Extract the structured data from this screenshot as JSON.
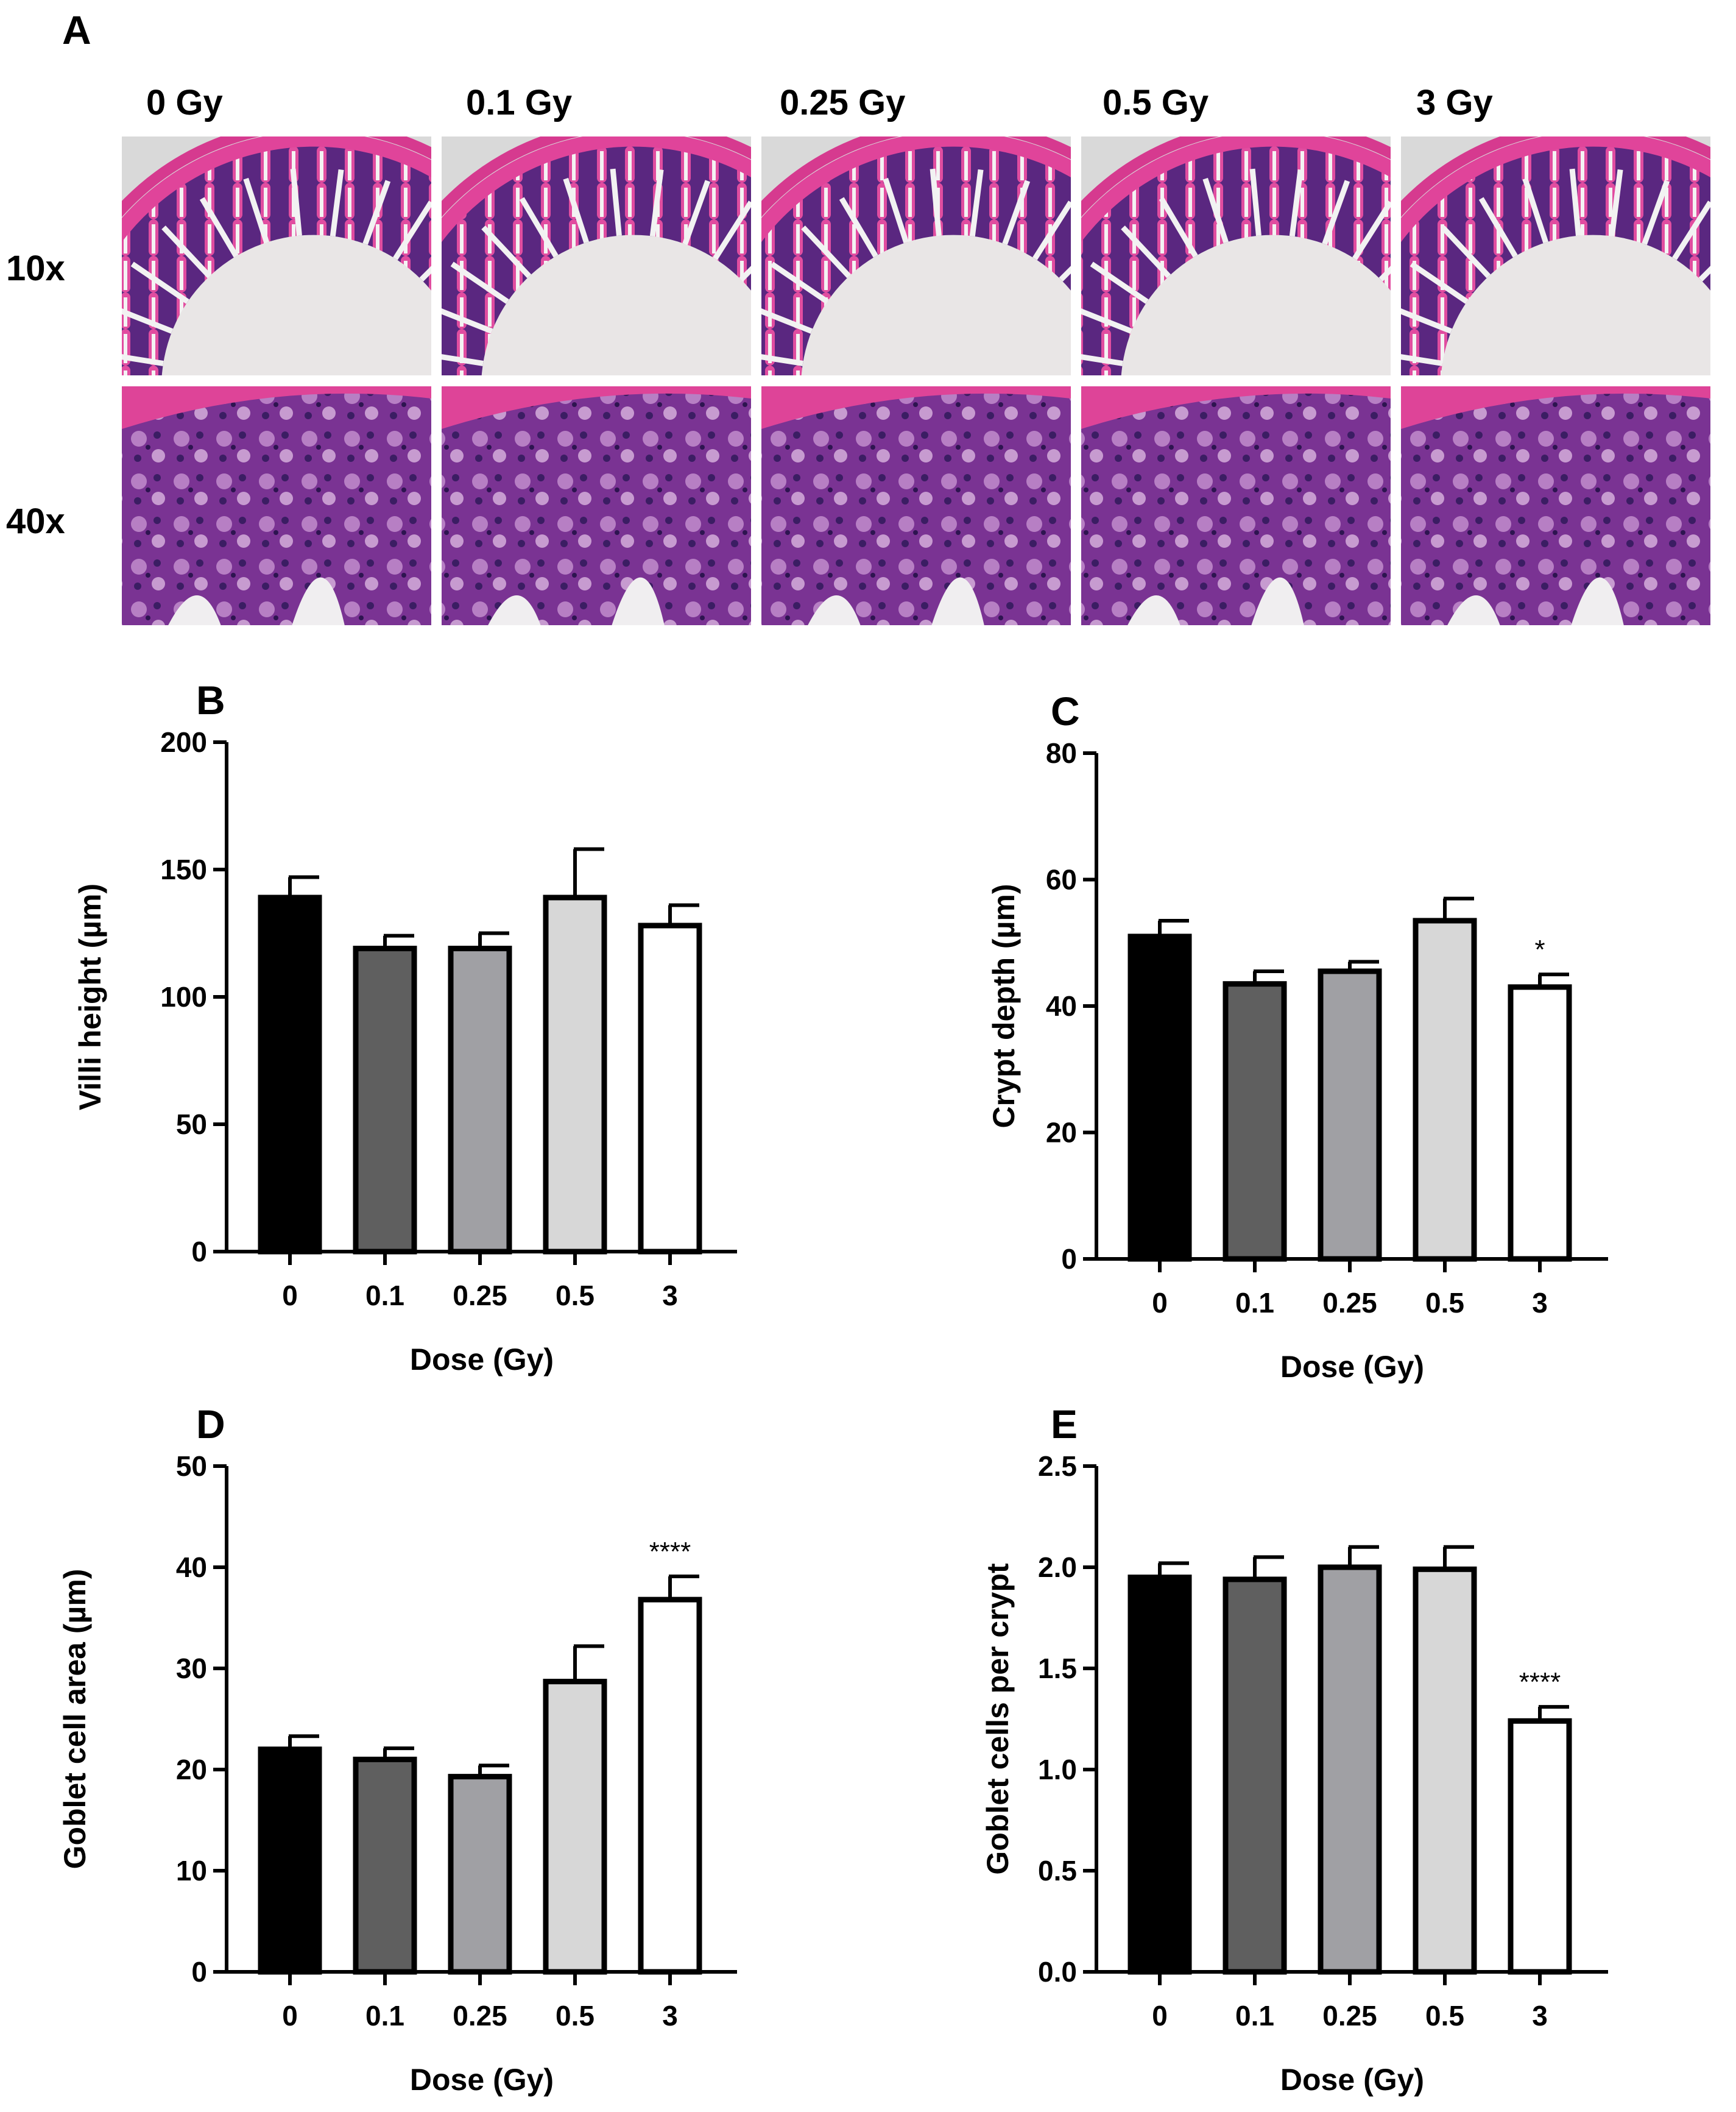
{
  "panel_a": {
    "label": "A",
    "columns": [
      "0 Gy",
      "0.1 Gy",
      "0.25 Gy",
      "0.5 Gy",
      "3 Gy"
    ],
    "rows": [
      "10x",
      "40x"
    ],
    "colors": {
      "pink": "#e0449a",
      "purple": "#5b2a80",
      "background": "#dcdcdc"
    }
  },
  "chart_data": [
    {
      "panel": "B",
      "type": "bar",
      "categories": [
        "0",
        "0.1",
        "0.25",
        "0.5",
        "3"
      ],
      "values": [
        139,
        119,
        119,
        139,
        128
      ],
      "errors": [
        8,
        5,
        6,
        19,
        8
      ],
      "significance": [
        "",
        "",
        "",
        "",
        ""
      ],
      "xlabel": "Dose (Gy)",
      "ylabel": "Villi height (µm)",
      "ylim": [
        0,
        200
      ],
      "yticks": [
        "0",
        "50",
        "100",
        "150",
        "200"
      ],
      "colors": [
        "#000000",
        "#5f5f5f",
        "#a0a0a4",
        "#d7d7d7",
        "#ffffff"
      ]
    },
    {
      "panel": "C",
      "type": "bar",
      "categories": [
        "0",
        "0.1",
        "0.25",
        "0.5",
        "3"
      ],
      "values": [
        51,
        43.5,
        45.5,
        53.5,
        43
      ],
      "errors": [
        2.5,
        2,
        1.5,
        3.5,
        2
      ],
      "significance": [
        "",
        "",
        "",
        "",
        "*"
      ],
      "xlabel": "Dose (Gy)",
      "ylabel": "Crypt depth (µm)",
      "ylim": [
        0,
        80
      ],
      "yticks": [
        "0",
        "20",
        "40",
        "60",
        "80"
      ],
      "colors": [
        "#000000",
        "#5f5f5f",
        "#a0a0a4",
        "#d7d7d7",
        "#ffffff"
      ]
    },
    {
      "panel": "D",
      "type": "bar",
      "categories": [
        "0",
        "0.1",
        "0.25",
        "0.5",
        "3"
      ],
      "values": [
        22,
        21,
        19.3,
        28.7,
        36.8
      ],
      "errors": [
        1.3,
        1.1,
        1.1,
        3.5,
        2.3
      ],
      "significance": [
        "",
        "",
        "",
        "",
        "****"
      ],
      "xlabel": "Dose (Gy)",
      "ylabel": "Goblet cell area (µm)",
      "ylim": [
        0,
        50
      ],
      "yticks": [
        "0",
        "10",
        "20",
        "30",
        "40",
        "50"
      ],
      "colors": [
        "#000000",
        "#5f5f5f",
        "#a0a0a4",
        "#d7d7d7",
        "#ffffff"
      ]
    },
    {
      "panel": "E",
      "type": "bar",
      "categories": [
        "0",
        "0.1",
        "0.25",
        "0.5",
        "3"
      ],
      "values": [
        1.95,
        1.94,
        2.0,
        1.99,
        1.24
      ],
      "errors": [
        0.07,
        0.11,
        0.1,
        0.11,
        0.07
      ],
      "significance": [
        "",
        "",
        "",
        "",
        "****"
      ],
      "xlabel": "Dose (Gy)",
      "ylabel": "Goblet cells per crypt",
      "ylim": [
        0,
        2.5
      ],
      "yticks": [
        "0.0",
        "0.5",
        "1.0",
        "1.5",
        "2.0",
        "2.5"
      ],
      "colors": [
        "#000000",
        "#5f5f5f",
        "#a0a0a4",
        "#d7d7d7",
        "#ffffff"
      ]
    }
  ]
}
